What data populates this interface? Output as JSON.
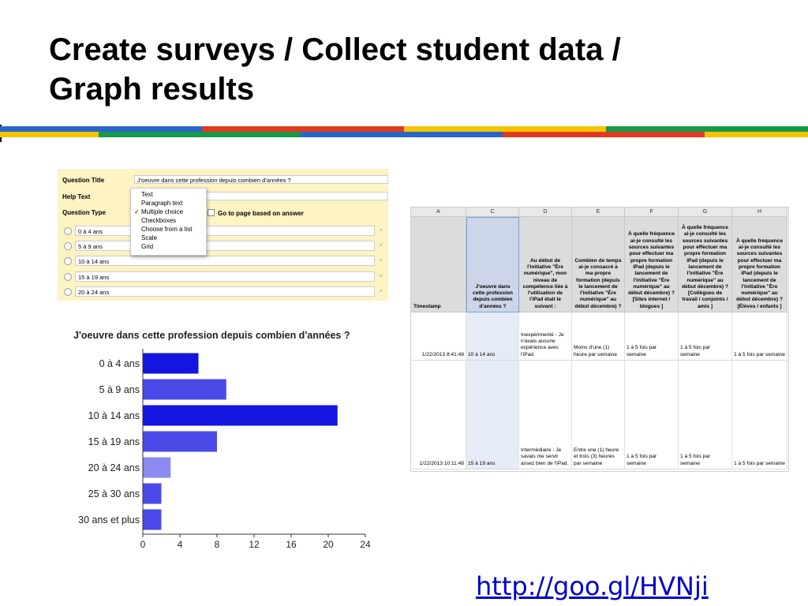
{
  "slide": {
    "title_line1": "Create surveys / Collect student data /",
    "title_line2": "Graph results",
    "link": "http://goo.gl/HVNji"
  },
  "colors": {
    "blue": "#2a66c9",
    "red": "#e03a21",
    "yellow": "#f5c400",
    "green": "#149a48",
    "bar_dark": "#1515e0",
    "bar_mid": "#4a4ae8",
    "bar_light": "#8a8af0",
    "link": "#0000cc"
  },
  "form_editor": {
    "question_title_label": "Question Title",
    "question_title_value": "J'oeuvre dans cette profession depuis combien d'années ?",
    "help_text_label": "Help Text",
    "question_type_label": "Question Type",
    "go_to_page_label": "Go to page based on answer",
    "type_menu": {
      "items": [
        "Text",
        "Paragraph text",
        "Multiple choice",
        "Checkboxes",
        "Choose from a list",
        "Scale",
        "Grid"
      ],
      "selected": "Multiple choice",
      "check_mark": "✓"
    },
    "options": [
      "0 à 4 ans",
      "5 à 9 ans",
      "10 à 14 ans",
      "15 à 19 ans",
      "20 à 24 ans"
    ],
    "remove_glyph": "×"
  },
  "chart_data": {
    "type": "bar",
    "orientation": "horizontal",
    "title": "J'oeuvre dans cette profession depuis combien d'années ?",
    "categories": [
      "0 à 4 ans",
      "5 à 9 ans",
      "10 à 14 ans",
      "15 à 19 ans",
      "20 à 24 ans",
      "25 à 30 ans",
      "30 ans et plus"
    ],
    "values": [
      6,
      9,
      21,
      8,
      3,
      2,
      2
    ],
    "xlim": [
      0,
      24
    ],
    "xticks": [
      0,
      4,
      8,
      12,
      16,
      20,
      24
    ],
    "grid": false,
    "legend": "none"
  },
  "spreadsheet": {
    "columns": [
      {
        "letter": "A",
        "header": "Timestamp"
      },
      {
        "letter": "C",
        "header": "J'oeuvre dans cette profession depuis combien d'années ?"
      },
      {
        "letter": "D",
        "header": "Au début de l'initiative \"Ère numérique\", mon niveau de compétence liée à l'utilisation de l'iPad était le suivant :"
      },
      {
        "letter": "E",
        "header": "Combien de temps ai-je consacré à ma propre formation (depuis le lancement de l'initiative \"Ère numérique\" au début décembre) ?"
      },
      {
        "letter": "F",
        "header": "À quelle fréquence ai-je consulté les sources suivantes pour effectuer ma propre formation iPad (depuis le lancement de l'initiative \"Ère numérique\" au début décembre) ? [Sites internet / blogues ]"
      },
      {
        "letter": "G",
        "header": "À quelle fréquence ai-je consulté les sources suivantes pour effectuer ma propre formation iPad (depuis le lancement de l'initiative \"Ère numérique\" au début décembre) ? [Collègues de travail / conjoints / amis ]"
      },
      {
        "letter": "H",
        "header": "À quelle fréquence ai-je consulté les sources suivantes pour effectuer ma propre formation iPad (depuis le lancement de l'initiative \"Ère numérique\" au début décembre) ? [Élèves / enfants ]"
      }
    ],
    "rows": [
      [
        "1/22/2013 8:41:48",
        "10 à 14 ans",
        "Inexpérimenté - Je n'avais aucune expérience avec l'iPad.",
        "Moins d'une (1) heure par semaine",
        "1 à 5 fois par semaine",
        "1 à 5 fois par semaine",
        "1 à 5 fois par semaine"
      ],
      [
        "1/22/2013 10:11:48",
        "15 à 19 ans",
        "Intermédiaire - Je savais me servir assez bien de l'iPad.",
        "Entre une (1) heure et trois (3) heures par semaine",
        "1 à 5 fois par semaine",
        "1 à 5 fois par semaine",
        "1 à 5 fois par semaine"
      ]
    ]
  }
}
